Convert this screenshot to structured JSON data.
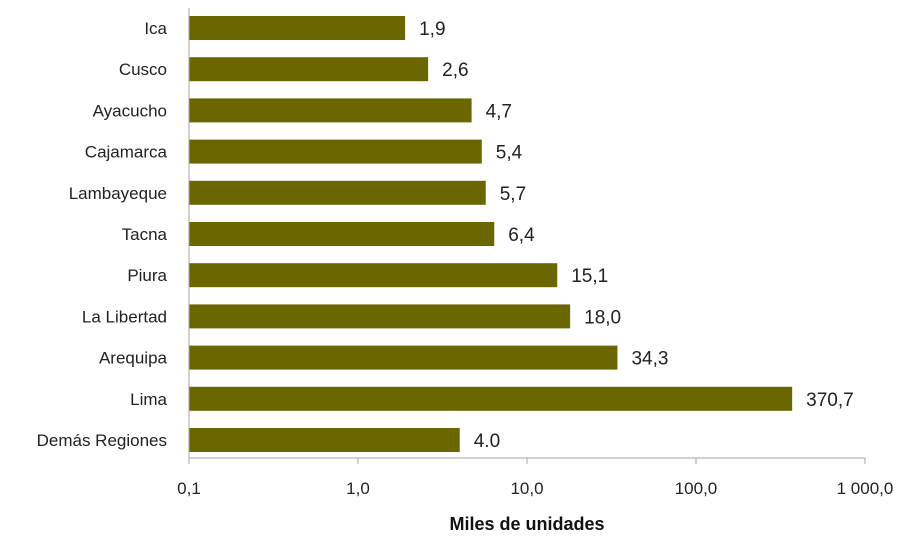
{
  "chart_data": {
    "type": "bar",
    "orientation": "horizontal",
    "x_scale": "log",
    "categories": [
      "Ica",
      "Cusco",
      "Ayacucho",
      "Cajamarca",
      "Lambayeque",
      "Tacna",
      "Piura",
      "La Libertad",
      "Arequipa",
      "Lima",
      "Demás Regiones"
    ],
    "values": [
      1.9,
      2.6,
      4.7,
      5.4,
      5.7,
      6.4,
      15.1,
      18.0,
      34.3,
      370.7,
      4.0
    ],
    "value_labels": [
      "1,9",
      "2,6",
      "4,7",
      "5,4",
      "5,7",
      "6,4",
      "15,1",
      "18,0",
      "34,3",
      "370,7",
      "4.0"
    ],
    "xlim": [
      0.1,
      1000
    ],
    "x_ticks": [
      0.1,
      1,
      10,
      100,
      1000
    ],
    "x_tick_labels": [
      "0,1",
      "1,0",
      "10,0",
      "100,0",
      "1 000,0"
    ],
    "xlabel": "Miles de unidades",
    "ylabel": "",
    "title": "",
    "grid": false,
    "legend": "none",
    "bar_color": "#6b6700",
    "axis_color": "#a6a6a6"
  }
}
